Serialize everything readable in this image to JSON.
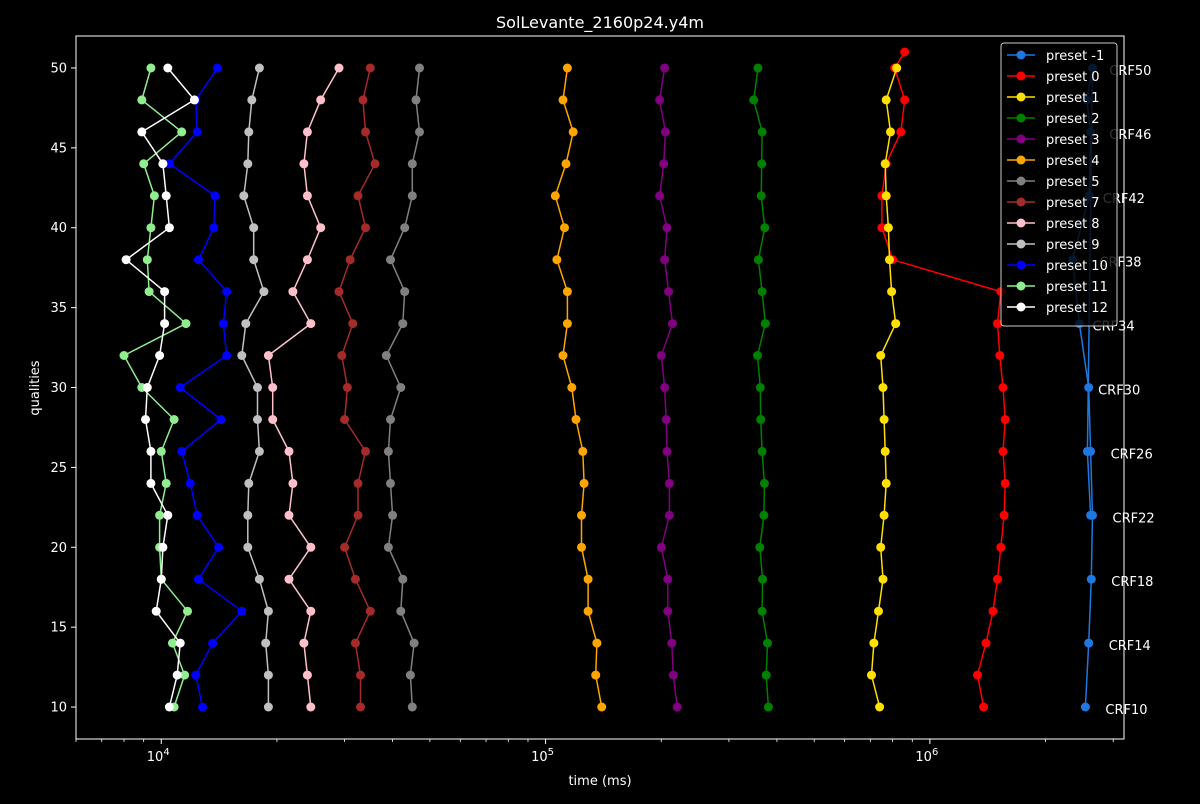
{
  "chart_data": {
    "type": "line",
    "title": "SolLevante_2160p24.y4m",
    "xlabel": "time (ms)",
    "ylabel": "qualities",
    "xscale": "log",
    "xlim": [
      6000,
      3200000
    ],
    "ylim": [
      8,
      52
    ],
    "xticks": [
      {
        "value": 10000,
        "base": "10",
        "exp": "4"
      },
      {
        "value": 100000,
        "base": "10",
        "exp": "5"
      },
      {
        "value": 1000000,
        "base": "10",
        "exp": "6"
      }
    ],
    "yticks": [
      10,
      15,
      20,
      25,
      30,
      35,
      40,
      45,
      50
    ],
    "grid": false,
    "legend_position": "top-right",
    "background_color": "#000000",
    "series": [
      {
        "name": "preset -1",
        "color": "#1f77e0",
        "x": [
          2540000,
          2590000,
          2630000,
          2650000,
          2620000,
          2590000,
          2450000,
          2350000,
          2600000,
          2620000,
          2560000,
          2650000,
          2570000,
          2620000
        ],
        "y": [
          10,
          14,
          18,
          22,
          26,
          30,
          34,
          38,
          42,
          46,
          48,
          50,
          26,
          22
        ]
      },
      {
        "name": "preset 0",
        "color": "#ff0000",
        "x": [
          1380000,
          1330000,
          1400000,
          1460000,
          1500000,
          1530000,
          1560000,
          1570000,
          1550000,
          1570000,
          1550000,
          1520000,
          1500000,
          1530000,
          800000,
          750000,
          750000,
          770000,
          840000,
          860000,
          810000,
          860000
        ],
        "y": [
          10,
          12,
          14,
          16,
          18,
          20,
          22,
          24,
          26,
          28,
          30,
          32,
          34,
          36,
          38,
          40,
          42,
          44,
          46,
          48,
          50,
          51
        ]
      },
      {
        "name": "preset 1",
        "color": "#ffe000",
        "x": [
          740000,
          705000,
          715000,
          735000,
          755000,
          745000,
          760000,
          770000,
          765000,
          760000,
          755000,
          745000,
          815000,
          795000,
          785000,
          780000,
          770000,
          765000,
          790000,
          770000,
          820000
        ],
        "y": [
          10,
          12,
          14,
          16,
          18,
          20,
          22,
          24,
          26,
          28,
          30,
          32,
          34,
          36,
          38,
          40,
          42,
          44,
          46,
          48,
          50
        ]
      },
      {
        "name": "preset 2",
        "color": "#008000",
        "x": [
          380000,
          375000,
          378000,
          366000,
          367000,
          361000,
          370000,
          371000,
          366000,
          363000,
          362000,
          356000,
          373000,
          366000,
          358000,
          372000,
          364000,
          365000,
          366000,
          348000,
          357000
        ],
        "y": [
          10,
          12,
          14,
          16,
          18,
          20,
          22,
          24,
          26,
          28,
          30,
          32,
          34,
          36,
          38,
          40,
          42,
          44,
          46,
          48,
          50
        ]
      },
      {
        "name": "preset 3",
        "color": "#800080",
        "x": [
          220000,
          215000,
          213000,
          208000,
          208000,
          200000,
          210000,
          210000,
          207000,
          206000,
          204000,
          200000,
          214000,
          209000,
          204000,
          207000,
          198000,
          203000,
          205000,
          198000,
          204000
        ],
        "y": [
          10,
          12,
          14,
          16,
          18,
          20,
          22,
          24,
          26,
          28,
          30,
          32,
          34,
          36,
          38,
          40,
          42,
          44,
          46,
          48,
          50
        ]
      },
      {
        "name": "preset 4",
        "color": "#ffa500",
        "x": [
          140000,
          135000,
          136000,
          129000,
          129000,
          124000,
          124000,
          126000,
          125000,
          120000,
          117000,
          111000,
          114000,
          114000,
          107000,
          112000,
          106000,
          113000,
          118000,
          111000,
          114000
        ],
        "y": [
          10,
          12,
          14,
          16,
          18,
          20,
          22,
          24,
          26,
          28,
          30,
          32,
          34,
          36,
          38,
          40,
          42,
          44,
          46,
          48,
          50
        ]
      },
      {
        "name": "preset 5",
        "color": "#808080",
        "x": [
          45000,
          44500,
          45500,
          42000,
          42500,
          39000,
          40000,
          39500,
          39000,
          39500,
          42000,
          38500,
          42500,
          43000,
          39500,
          43000,
          45000,
          45000,
          47000,
          46000,
          47000
        ],
        "y": [
          10,
          12,
          14,
          16,
          18,
          20,
          22,
          24,
          26,
          28,
          30,
          32,
          34,
          36,
          38,
          40,
          42,
          44,
          46,
          48,
          50
        ]
      },
      {
        "name": "preset 7",
        "color": "#a52a2a",
        "x": [
          33000,
          33000,
          32000,
          35000,
          32000,
          30000,
          32500,
          32500,
          34000,
          30000,
          30500,
          29500,
          31500,
          29000,
          31000,
          34000,
          32500,
          36000,
          34000,
          33500,
          35000
        ],
        "y": [
          10,
          12,
          14,
          16,
          18,
          20,
          22,
          24,
          26,
          28,
          30,
          32,
          34,
          36,
          38,
          40,
          42,
          44,
          46,
          48,
          50
        ]
      },
      {
        "name": "preset 8",
        "color": "#ffc0cb",
        "x": [
          24500,
          24000,
          23500,
          24500,
          21500,
          24500,
          21500,
          22000,
          21500,
          19500,
          19500,
          19000,
          24500,
          22000,
          24000,
          26000,
          24000,
          23500,
          24000,
          26000,
          29000
        ],
        "y": [
          10,
          12,
          14,
          16,
          18,
          20,
          22,
          24,
          26,
          28,
          30,
          32,
          34,
          36,
          38,
          40,
          42,
          44,
          46,
          48,
          50
        ]
      },
      {
        "name": "preset 9",
        "color": "#c0c0c0",
        "x": [
          19000,
          19000,
          18700,
          19000,
          18000,
          16800,
          16800,
          16900,
          18000,
          17800,
          17800,
          16200,
          16600,
          18500,
          17400,
          17400,
          16400,
          16800,
          16900,
          17200,
          18000
        ],
        "y": [
          10,
          12,
          14,
          16,
          18,
          20,
          22,
          24,
          26,
          28,
          30,
          32,
          34,
          36,
          38,
          40,
          42,
          44,
          46,
          48,
          50
        ]
      },
      {
        "name": "preset 10",
        "color": "#0000ff",
        "x": [
          12800,
          12300,
          13600,
          16200,
          12500,
          14100,
          12400,
          11900,
          11300,
          14300,
          11200,
          14800,
          14500,
          14800,
          12500,
          13700,
          13800,
          10500,
          12400,
          12300,
          14000
        ],
        "y": [
          10,
          12,
          14,
          16,
          18,
          20,
          22,
          24,
          26,
          28,
          30,
          32,
          34,
          36,
          38,
          40,
          42,
          44,
          46,
          48,
          50
        ]
      },
      {
        "name": "preset 11",
        "color": "#90ee90",
        "x": [
          10800,
          11500,
          10700,
          11700,
          10000,
          9900,
          9900,
          10300,
          10000,
          10800,
          8900,
          8000,
          11600,
          9300,
          9200,
          9400,
          9600,
          9000,
          11300,
          8900,
          9400
        ],
        "y": [
          10,
          12,
          14,
          16,
          18,
          20,
          22,
          24,
          26,
          28,
          30,
          32,
          34,
          36,
          38,
          40,
          42,
          44,
          46,
          48,
          50
        ]
      },
      {
        "name": "preset 12",
        "color": "#ffffff",
        "x": [
          10500,
          11000,
          11200,
          9700,
          10000,
          10100,
          10400,
          9400,
          9400,
          9100,
          9200,
          9900,
          10200,
          10200,
          8100,
          10500,
          10300,
          10100,
          8900,
          12200,
          10400
        ],
        "y": [
          10,
          12,
          14,
          16,
          18,
          20,
          22,
          24,
          26,
          28,
          30,
          32,
          34,
          36,
          38,
          40,
          42,
          44,
          46,
          48,
          50
        ]
      }
    ],
    "annotations": [
      {
        "text": "CRF10",
        "x": 2540000,
        "y": 10
      },
      {
        "text": "CRF14",
        "x": 2590000,
        "y": 14
      },
      {
        "text": "CRF18",
        "x": 2630000,
        "y": 18
      },
      {
        "text": "CRF22",
        "x": 2650000,
        "y": 22
      },
      {
        "text": "CRF26",
        "x": 2620000,
        "y": 26
      },
      {
        "text": "CRF30",
        "x": 2430000,
        "y": 30
      },
      {
        "text": "CRF34",
        "x": 2350000,
        "y": 34
      },
      {
        "text": "CRF38",
        "x": 2450000,
        "y": 38
      },
      {
        "text": "CRF42",
        "x": 2500000,
        "y": 42
      },
      {
        "text": "CRF46",
        "x": 2600000,
        "y": 46
      },
      {
        "text": "CRF50",
        "x": 2600000,
        "y": 50
      }
    ]
  }
}
